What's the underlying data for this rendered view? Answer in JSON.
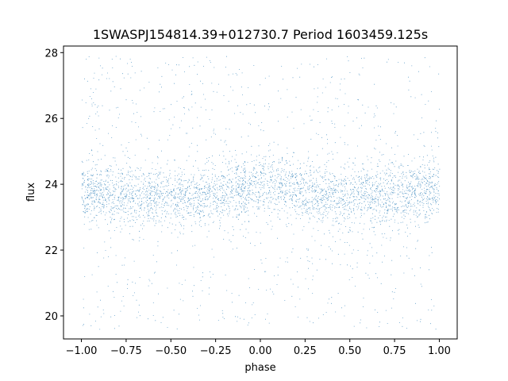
{
  "chart_data": {
    "type": "scatter",
    "title": "1SWASPJ154814.39+012730.7 Period 1603459.125s",
    "xlabel": "phase",
    "ylabel": "flux",
    "xlim": [
      -1.1,
      1.1
    ],
    "ylim": [
      19.3,
      28.2
    ],
    "xticks": [
      -1.0,
      -0.75,
      -0.5,
      -0.25,
      0.0,
      0.25,
      0.5,
      0.75,
      1.0
    ],
    "xtick_labels": [
      "−1.00",
      "−0.75",
      "−0.50",
      "−0.25",
      "0.00",
      "0.25",
      "0.50",
      "0.75",
      "1.00"
    ],
    "yticks": [
      20,
      22,
      24,
      26,
      28
    ],
    "ytick_labels": [
      "20",
      "22",
      "24",
      "26",
      "28"
    ],
    "grid": false,
    "series": [
      {
        "color": "#1f77b4",
        "description_of_shape": "dense phase-folded light curve",
        "x_range": [
          -1.0,
          1.0
        ],
        "core_band": [
          23.0,
          24.6
        ],
        "core_center": 23.8,
        "scatter_range": [
          19.6,
          27.9
        ],
        "modulation": [
          {
            "phase": -1.0,
            "center": 23.8
          },
          {
            "phase": -0.75,
            "center": 23.7
          },
          {
            "phase": -0.5,
            "center": 23.6
          },
          {
            "phase": -0.25,
            "center": 23.7
          },
          {
            "phase": 0.0,
            "center": 24.0
          },
          {
            "phase": 0.25,
            "center": 23.8
          },
          {
            "phase": 0.5,
            "center": 23.6
          },
          {
            "phase": 0.75,
            "center": 23.7
          },
          {
            "phase": 1.0,
            "center": 23.9
          }
        ]
      }
    ]
  }
}
